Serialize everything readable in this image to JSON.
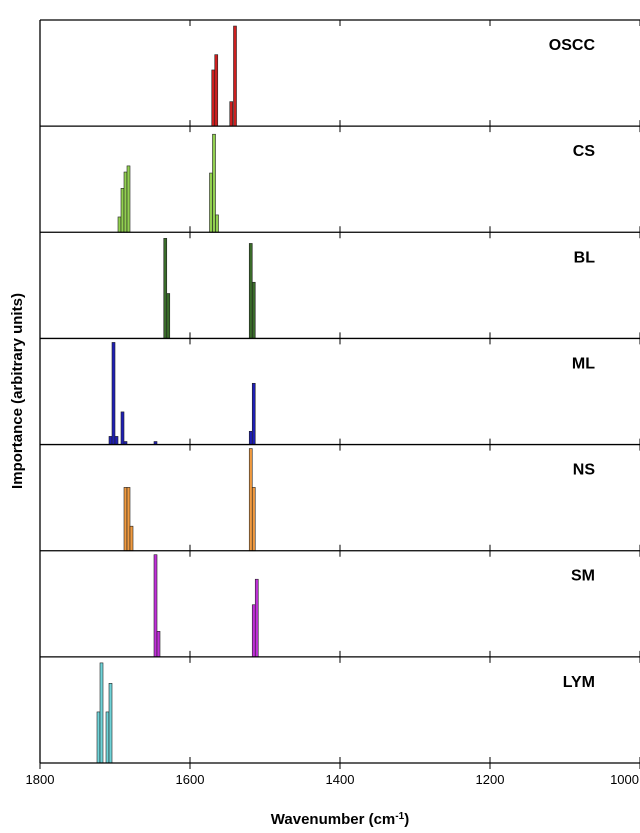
{
  "chart_data": {
    "type": "bar",
    "xlabel": "Wavenumber (cm⁻¹)",
    "ylabel": "Importance (arbitrary units)",
    "xlim": [
      1800,
      1000
    ],
    "x_reversed": true,
    "xticks": [
      "1800",
      "1600",
      "1400",
      "1200",
      "1000"
    ],
    "xtick_values": [
      1800,
      1600,
      1400,
      1200,
      1000
    ],
    "ylim": [
      0,
      1
    ],
    "grid": false,
    "bar_width_cm": 4,
    "series": [
      {
        "name": "OSCC",
        "color": "#cc1f1f",
        "bars": [
          {
            "x": 1569,
            "value": 0.55
          },
          {
            "x": 1565,
            "value": 0.7
          },
          {
            "x": 1545,
            "value": 0.24
          },
          {
            "x": 1540,
            "value": 0.98
          }
        ]
      },
      {
        "name": "CS",
        "color": "#92d050",
        "bars": [
          {
            "x": 1694,
            "value": 0.15
          },
          {
            "x": 1690,
            "value": 0.43
          },
          {
            "x": 1686,
            "value": 0.59
          },
          {
            "x": 1682,
            "value": 0.65
          },
          {
            "x": 1572,
            "value": 0.58
          },
          {
            "x": 1568,
            "value": 0.96
          },
          {
            "x": 1564,
            "value": 0.17
          }
        ]
      },
      {
        "name": "BL",
        "color": "#3a6b2a",
        "bars": [
          {
            "x": 1633,
            "value": 0.98
          },
          {
            "x": 1629,
            "value": 0.44
          },
          {
            "x": 1519,
            "value": 0.93
          },
          {
            "x": 1515,
            "value": 0.55
          }
        ]
      },
      {
        "name": "ML",
        "color": "#1f1fb4",
        "bars": [
          {
            "x": 1706,
            "value": 0.08
          },
          {
            "x": 1702,
            "value": 1.0
          },
          {
            "x": 1698,
            "value": 0.08
          },
          {
            "x": 1690,
            "value": 0.32
          },
          {
            "x": 1686,
            "value": 0.03
          },
          {
            "x": 1646,
            "value": 0.03
          },
          {
            "x": 1519,
            "value": 0.13
          },
          {
            "x": 1515,
            "value": 0.6
          }
        ]
      },
      {
        "name": "NS",
        "color": "#f09a40",
        "bars": [
          {
            "x": 1686,
            "value": 0.62
          },
          {
            "x": 1682,
            "value": 0.62
          },
          {
            "x": 1678,
            "value": 0.24
          },
          {
            "x": 1519,
            "value": 1.0
          },
          {
            "x": 1515,
            "value": 0.62
          }
        ]
      },
      {
        "name": "SM",
        "color": "#bf2fd8",
        "bars": [
          {
            "x": 1646,
            "value": 1.0
          },
          {
            "x": 1642,
            "value": 0.25
          },
          {
            "x": 1515,
            "value": 0.51
          },
          {
            "x": 1511,
            "value": 0.76
          }
        ]
      },
      {
        "name": "LYM",
        "color": "#6fd3d8",
        "bars": [
          {
            "x": 1722,
            "value": 0.5
          },
          {
            "x": 1718,
            "value": 0.98
          },
          {
            "x": 1710,
            "value": 0.5
          },
          {
            "x": 1706,
            "value": 0.78
          }
        ]
      }
    ]
  }
}
